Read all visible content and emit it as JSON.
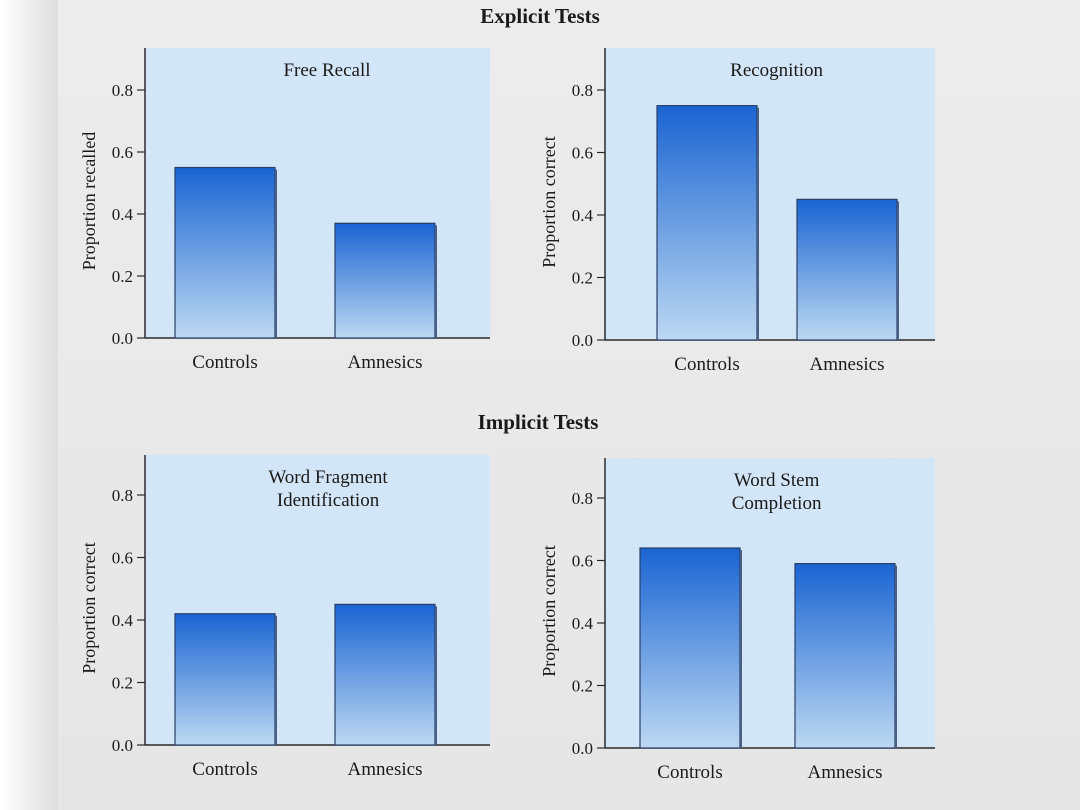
{
  "sections": {
    "explicit_title": "Explicit Tests",
    "implicit_title": "Implicit Tests"
  },
  "colors": {
    "panel_fill": "#d2e6f7",
    "bar_top": "#1a64d2",
    "bar_bottom": "#bcd8f2",
    "axis": "#2a2a2a",
    "text": "#1a1a1a"
  },
  "chart_data": [
    {
      "type": "bar",
      "title": "Free Recall",
      "ylabel": "Proportion recalled",
      "categories": [
        "Controls",
        "Amnesics"
      ],
      "values": [
        0.55,
        0.37
      ],
      "ylim": [
        0,
        0.8
      ],
      "yticks": [
        "0.0",
        "0.2",
        "0.4",
        "0.6",
        "0.8"
      ]
    },
    {
      "type": "bar",
      "title": "Recognition",
      "ylabel": "Proportion correct",
      "categories": [
        "Controls",
        "Amnesics"
      ],
      "values": [
        0.75,
        0.45
      ],
      "ylim": [
        0,
        0.8
      ],
      "yticks": [
        "0.0",
        "0.2",
        "0.4",
        "0.6",
        "0.8"
      ]
    },
    {
      "type": "bar",
      "title": "Word Fragment Identification",
      "title_lines": [
        "Word Fragment",
        "Identification"
      ],
      "ylabel": "Proportion correct",
      "categories": [
        "Controls",
        "Amnesics"
      ],
      "values": [
        0.42,
        0.45
      ],
      "ylim": [
        0,
        0.8
      ],
      "yticks": [
        "0.0",
        "0.2",
        "0.4",
        "0.6",
        "0.8"
      ]
    },
    {
      "type": "bar",
      "title": "Word Stem Completion",
      "title_lines": [
        "Word Stem",
        "Completion"
      ],
      "ylabel": "Proportion correct",
      "categories": [
        "Controls",
        "Amnesics"
      ],
      "values": [
        0.64,
        0.59
      ],
      "ylim": [
        0,
        0.8
      ],
      "yticks": [
        "0.0",
        "0.2",
        "0.4",
        "0.6",
        "0.8"
      ]
    }
  ]
}
